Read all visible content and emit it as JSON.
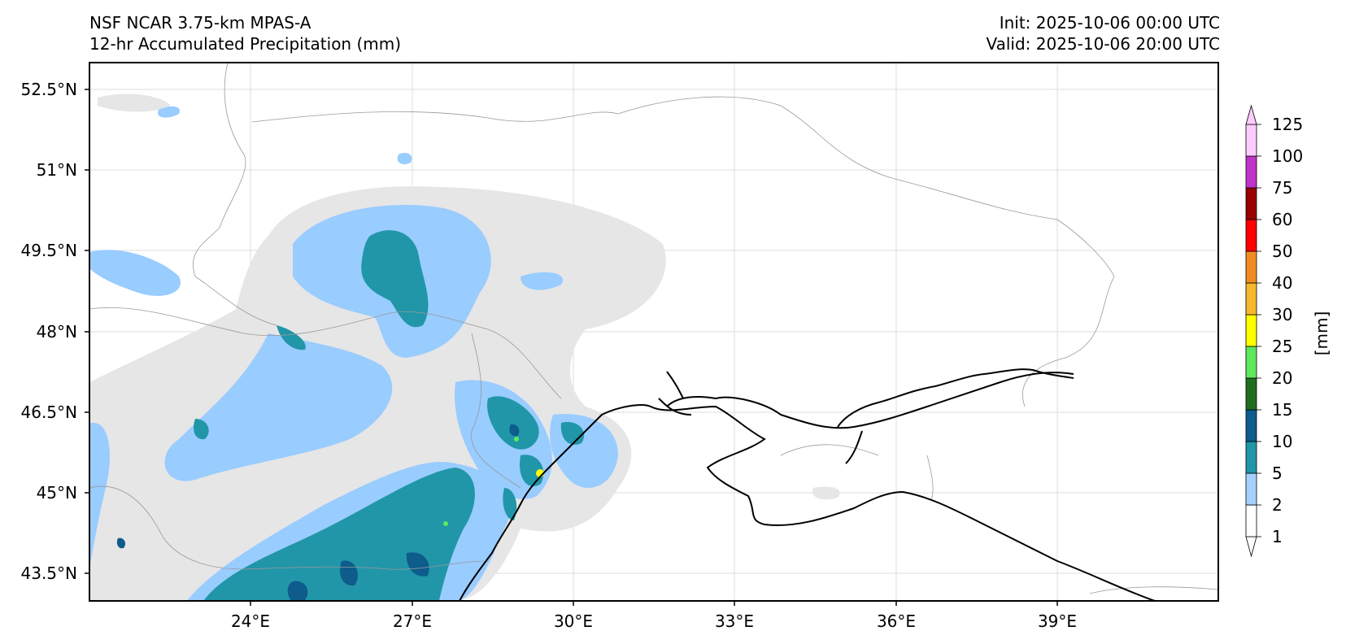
{
  "header": {
    "model": "NSF NCAR 3.75-km MPAS-A",
    "field": "12-hr Accumulated Precipitation (mm)",
    "init": "Init: 2025-10-06 00:00 UTC",
    "valid": "Valid: 2025-10-06 20:00 UTC"
  },
  "map": {
    "lat_labels": [
      "52.5°N",
      "51°N",
      "49.5°N",
      "48°N",
      "46.5°N",
      "45°N",
      "43.5°N"
    ],
    "lon_labels": [
      "24°E",
      "27°E",
      "30°E",
      "33°E",
      "36°E",
      "39°E"
    ],
    "colors": {
      "trace": "#e6e6e6",
      "light": "#99ccff",
      "moderate": "#2196a8",
      "heavy": "#0d5c8c",
      "coast": "#000000",
      "border": "#999999"
    }
  },
  "colorbar": {
    "units": "[mm]",
    "levels": [
      "1",
      "2",
      "5",
      "10",
      "15",
      "20",
      "25",
      "30",
      "40",
      "50",
      "60",
      "75",
      "100",
      "125"
    ],
    "colors": [
      "#ffffff",
      "#a6d1ff",
      "#2196a8",
      "#0d5c8c",
      "#1f6e1f",
      "#5ee85e",
      "#ffff00",
      "#f5b82e",
      "#f08c22",
      "#ff0000",
      "#990000",
      "#c033c9",
      "#ffccff"
    ]
  }
}
